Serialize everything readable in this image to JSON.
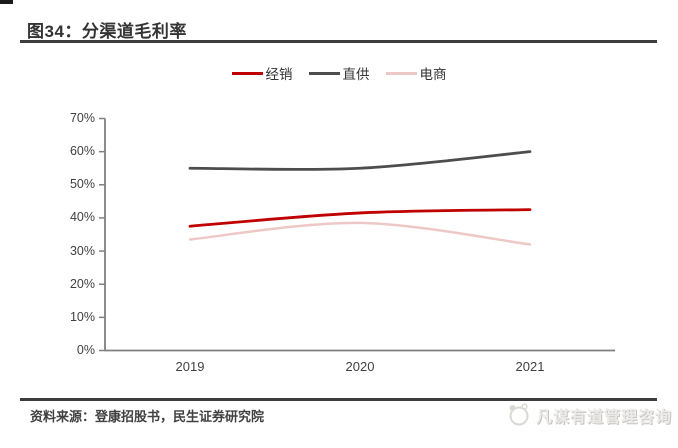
{
  "page": {
    "corner_mark": "black-corner-bar"
  },
  "source": {
    "label": "资料来源：登康招股书，民生证券研究院"
  },
  "watermark": {
    "logo": "sketch-circle-logo",
    "text": "凡谋有道管理咨询"
  },
  "chart_data": {
    "type": "line",
    "title": "图34：分渠道毛利率",
    "categories": [
      "2019",
      "2020",
      "2021"
    ],
    "series": [
      {
        "name": "经销",
        "values": [
          37.5,
          41.5,
          42.5
        ],
        "color": "#C00000",
        "stroke_width": 2.8
      },
      {
        "name": "直供",
        "values": [
          55.0,
          55.0,
          60.0
        ],
        "color": "#4D4D4D",
        "stroke_width": 2.8
      },
      {
        "name": "电商",
        "values": [
          33.5,
          38.5,
          32.0
        ],
        "color": "#EDC8C6",
        "stroke_width": 2.5
      }
    ],
    "xlabel": "",
    "ylabel": "",
    "ylim": [
      0,
      70
    ],
    "y_tick_step": 10,
    "y_tick_labels": [
      "0%",
      "10%",
      "20%",
      "30%",
      "40%",
      "50%",
      "60%",
      "70%"
    ],
    "grid": false,
    "smooth": true,
    "legend_position": "top",
    "axis_color": "#808080",
    "tick_label_color": "#404040"
  }
}
